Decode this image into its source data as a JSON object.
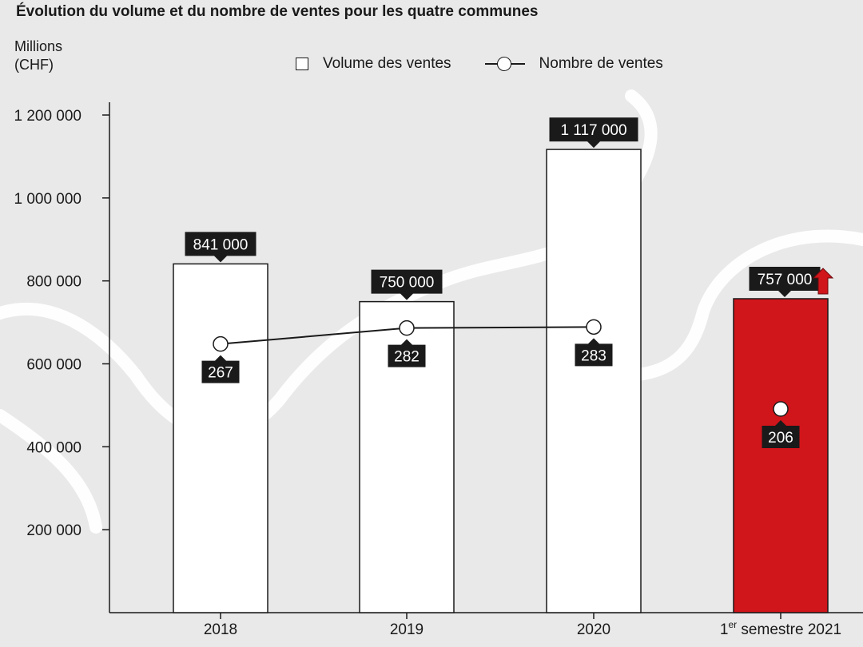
{
  "title": "Évolution du volume et du nombre de ventes pour les quatre communes",
  "unit": {
    "line1": "Millions",
    "line2": "(CHF)"
  },
  "legend": {
    "bars": "Volume des ventes",
    "line": "Nombre de ventes"
  },
  "colors": {
    "background": "#e9e9e9",
    "bar": "#ffffff",
    "highlight_bar": "#d0151b",
    "axis": "#1a1a1a",
    "label_box": "#1a1a1a",
    "arrow": "#d0151b"
  },
  "chart_data": {
    "type": "bar",
    "title": "Évolution du volume et du nombre de ventes pour les quatre communes",
    "ylabel": "Millions (CHF)",
    "ylim": [
      0,
      1200000
    ],
    "yticks": [
      200000,
      400000,
      600000,
      800000,
      1000000,
      1200000
    ],
    "ytick_labels": [
      "200 000",
      "400 000",
      "600 000",
      "800 000",
      "1 000 000",
      "1 200 000"
    ],
    "categories": [
      "2018",
      "2019",
      "2020",
      "1er semestre 2021"
    ],
    "series": [
      {
        "name": "Volume des ventes",
        "type": "bar",
        "values": [
          841000,
          750000,
          1117000,
          757000
        ],
        "labels": [
          "841 000",
          "750 000",
          "1 117 000",
          "757 000"
        ],
        "highlight_index": 3
      },
      {
        "name": "Nombre de ventes",
        "type": "line",
        "values": [
          267,
          282,
          283,
          206
        ],
        "labels": [
          "267",
          "282",
          "283",
          "206"
        ],
        "connected": [
          true,
          true,
          true,
          false
        ]
      }
    ],
    "grid": false,
    "legend_position": "top"
  }
}
